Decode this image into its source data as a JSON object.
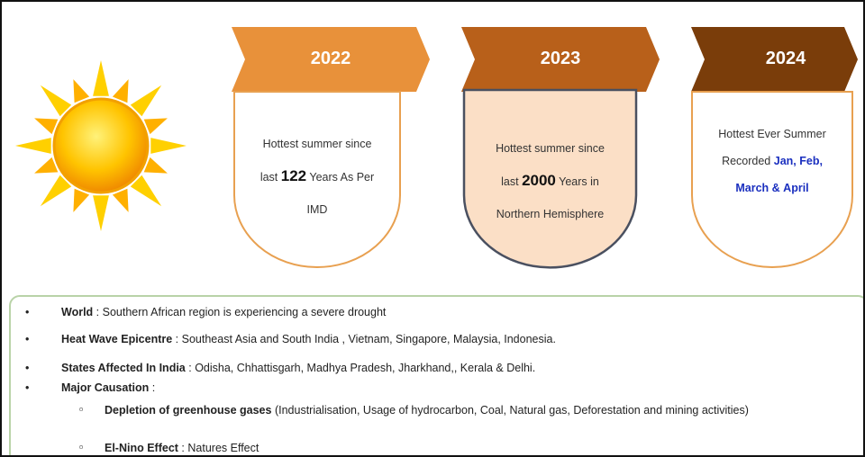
{
  "timeline": [
    {
      "year": "2022",
      "text_before": "Hottest summer since",
      "line2_start": "last",
      "highlight": "122",
      "text_after": "Years As Per",
      "line3": "IMD"
    },
    {
      "year": "2023",
      "text_before": "Hottest summer since",
      "line2_start": "last",
      "highlight": "2000",
      "text_after": "Years in",
      "line3": "Northern Hemisphere"
    },
    {
      "year": "2024",
      "line1": "Hottest Ever Summer",
      "line2_start": "Recorded",
      "months_1": "Jan, Feb,",
      "months_2": "March",
      "amp": "&",
      "months_3": "April"
    }
  ],
  "bullets": [
    {
      "label": "World",
      "text": "Southern African region is experiencing a severe drought"
    },
    {
      "label": "Heat Wave Epicentre",
      "text": "Southeast Asia and South  India ,  Vietnam, Singapore, Malaysia, Indonesia."
    },
    {
      "label": "States Affected In India",
      "text": "Odisha, Chhattisgarh, Madhya Pradesh, Jharkhand,, Kerala & Delhi."
    },
    {
      "label": "Major Causation",
      "text": "",
      "sub": [
        {
          "label": "Depletion of greenhouse gases",
          "text": "(Industrialisation, Usage of hydrocarbon, Coal, Natural gas, Deforestation and mining activities)"
        },
        {
          "label": "El-Nino Effect",
          "text": "Natures Effect"
        }
      ]
    }
  ]
}
